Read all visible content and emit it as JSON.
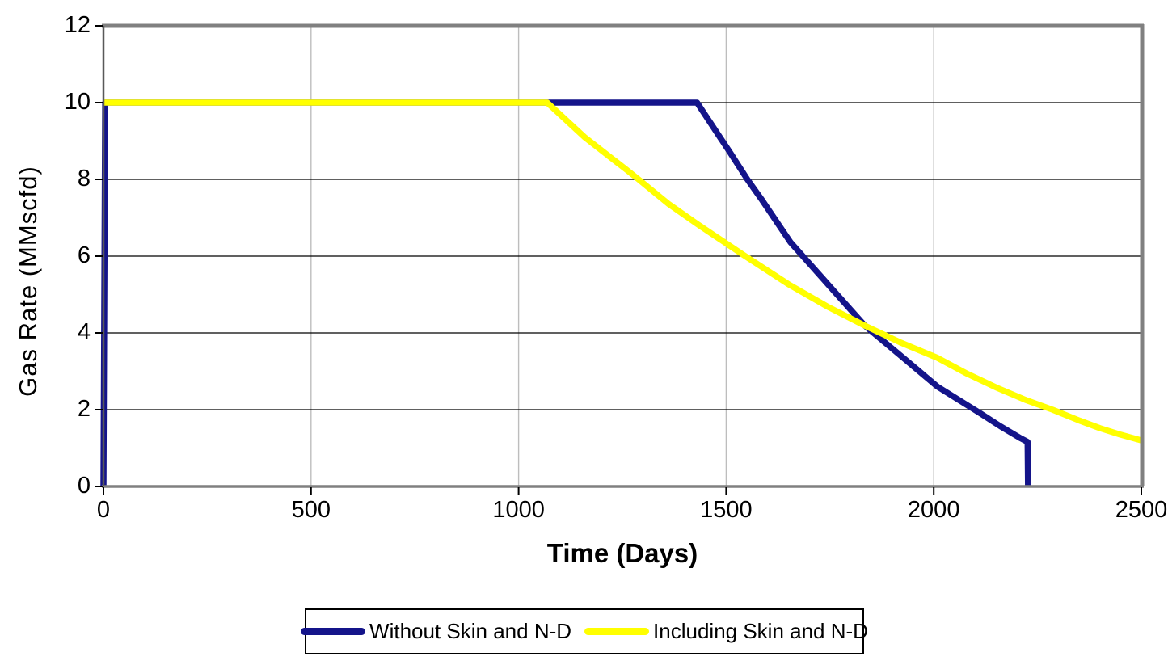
{
  "chart_data": {
    "type": "line",
    "title": "",
    "xlabel": "Time (Days)",
    "ylabel": "Gas Rate (MMscfd)",
    "xlim": [
      0,
      2500
    ],
    "ylim": [
      0,
      12
    ],
    "x_ticks": [
      0,
      500,
      1000,
      1500,
      2000,
      2500
    ],
    "y_ticks": [
      0,
      2,
      4,
      6,
      8,
      10,
      12
    ],
    "grid": {
      "horizontal": true,
      "vertical": true,
      "horizontal_color": "#000000",
      "vertical_color": "#bdbdbd"
    },
    "frame_color": "#808080",
    "axis_color": "#595959",
    "tick_color": "#000000",
    "legend_position": "bottom-center",
    "series": [
      {
        "name": "Without Skin and N-D",
        "color": "#14148A",
        "points": [
          [
            0,
            0
          ],
          [
            4,
            10
          ],
          [
            1430,
            10
          ],
          [
            1510,
            8.69
          ],
          [
            1551,
            8.0
          ],
          [
            1587,
            7.45
          ],
          [
            1655,
            6.36
          ],
          [
            1745,
            5.27
          ],
          [
            1834,
            4.19
          ],
          [
            1920,
            3.41
          ],
          [
            2009,
            2.6
          ],
          [
            2110,
            1.92
          ],
          [
            2160,
            1.57
          ],
          [
            2210,
            1.25
          ],
          [
            2221,
            1.19
          ],
          [
            2226,
            1.16
          ],
          [
            2227,
            0
          ]
        ]
      },
      {
        "name": "Including Skin and N-D",
        "color": "#FFFF00",
        "points": [
          [
            0,
            10
          ],
          [
            1069,
            10
          ],
          [
            1160,
            9.09
          ],
          [
            1260,
            8.25
          ],
          [
            1289,
            8.0
          ],
          [
            1360,
            7.37
          ],
          [
            1430,
            6.84
          ],
          [
            1546,
            6.0
          ],
          [
            1650,
            5.27
          ],
          [
            1745,
            4.68
          ],
          [
            1834,
            4.19
          ],
          [
            1920,
            3.75
          ],
          [
            2009,
            3.35
          ],
          [
            2080,
            2.94
          ],
          [
            2150,
            2.58
          ],
          [
            2220,
            2.26
          ],
          [
            2286,
            2.0
          ],
          [
            2350,
            1.72
          ],
          [
            2400,
            1.52
          ],
          [
            2450,
            1.35
          ],
          [
            2500,
            1.2
          ]
        ]
      }
    ]
  }
}
